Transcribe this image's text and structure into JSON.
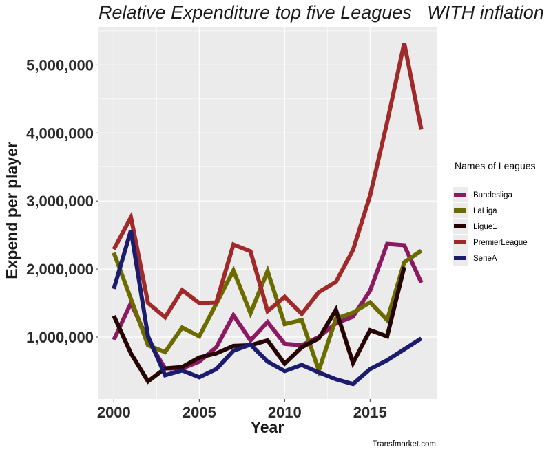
{
  "chart_data": {
    "type": "line",
    "title": "Relative Expenditure top five Leagues   WITH inflation",
    "xlabel": "Year",
    "ylabel": "Expend per player",
    "caption": "Transfmarket.com",
    "xlim": [
      1999.1,
      2018.9
    ],
    "ylim": [
      90000,
      5560000
    ],
    "x_ticks": [
      2000,
      2005,
      2010,
      2015
    ],
    "x_tick_labels": [
      "2000",
      "2005",
      "2010",
      "2015"
    ],
    "y_ticks": [
      1000000,
      2000000,
      3000000,
      4000000,
      5000000
    ],
    "y_tick_labels": [
      "1,000,000",
      "2,000,000",
      "3,000,000",
      "4,000,000",
      "5,000,000"
    ],
    "grid": true,
    "legend": {
      "title": "Names of Leagues",
      "position": "right"
    },
    "x": [
      2000,
      2001,
      2002,
      2003,
      2004,
      2005,
      2006,
      2007,
      2008,
      2009,
      2010,
      2011,
      2012,
      2013,
      2014,
      2015,
      2016,
      2017,
      2018
    ],
    "series": [
      {
        "name": "Bundesliga",
        "color": "#8b1a62",
        "values": [
          960000,
          1500000,
          950000,
          540000,
          540000,
          640000,
          850000,
          1320000,
          950000,
          1220000,
          900000,
          880000,
          1000000,
          1200000,
          1300000,
          1680000,
          2370000,
          2350000,
          1800000
        ]
      },
      {
        "name": "LaLiga",
        "color": "#6b6b00",
        "values": [
          2240000,
          1560000,
          880000,
          780000,
          1140000,
          1010000,
          1490000,
          1980000,
          1350000,
          1970000,
          1190000,
          1250000,
          510000,
          1270000,
          1360000,
          1510000,
          1250000,
          2100000,
          2270000
        ]
      },
      {
        "name": "Ligue1",
        "color": "#260404",
        "values": [
          1310000,
          760000,
          350000,
          540000,
          560000,
          700000,
          760000,
          870000,
          880000,
          950000,
          610000,
          850000,
          980000,
          1400000,
          620000,
          1100000,
          1010000,
          2030000,
          null
        ]
      },
      {
        "name": "PremierLeague",
        "color": "#a02a2a",
        "values": [
          2290000,
          2760000,
          1500000,
          1290000,
          1690000,
          1500000,
          1510000,
          2360000,
          2260000,
          1380000,
          1590000,
          1340000,
          1660000,
          1810000,
          2280000,
          3080000,
          4160000,
          5320000,
          4050000
        ]
      },
      {
        "name": "SerieA",
        "color": "#1c1c6e",
        "values": [
          1710000,
          2570000,
          1010000,
          440000,
          510000,
          410000,
          530000,
          800000,
          890000,
          640000,
          500000,
          590000,
          480000,
          380000,
          310000,
          530000,
          660000,
          820000,
          980000
        ]
      }
    ]
  }
}
